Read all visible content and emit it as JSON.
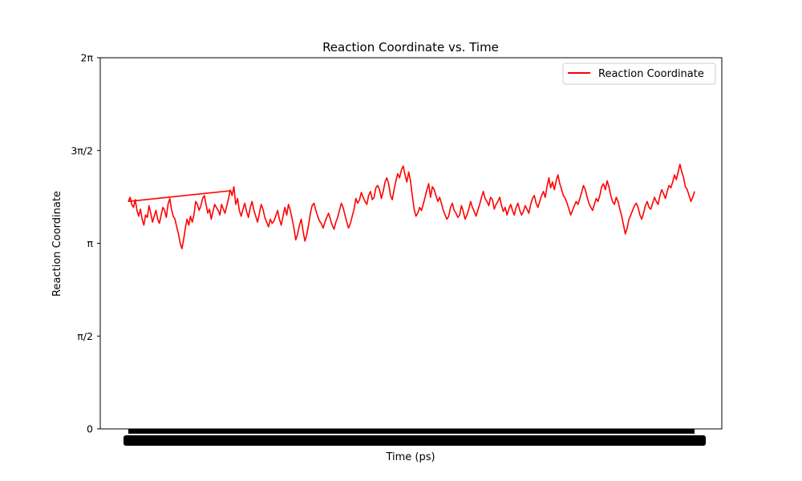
{
  "chart_data": {
    "type": "line",
    "title": "Reaction Coordinate vs. Time",
    "xlabel": "Time (ps)",
    "ylabel": "Reaction Coordinate",
    "ylim": [
      0,
      6.283185307179586
    ],
    "yticks": [
      {
        "value": 0,
        "label": "0"
      },
      {
        "value": 1.5707963267948966,
        "label": "π/2"
      },
      {
        "value": 3.141592653589793,
        "label": "π"
      },
      {
        "value": 4.71238898038469,
        "label": "3π/2"
      },
      {
        "value": 6.283185307179586,
        "label": "2π"
      }
    ],
    "x_ticks_note": "hundreds of overlapping numeric tick labels rendered as a solid black band",
    "grid": false,
    "legend_position": "upper right",
    "series": [
      {
        "name": "Reaction Coordinate",
        "color": "#ff0000",
        "segments": [
          {
            "x_start": 0,
            "x_end": 0.18,
            "values": [
              3.85,
              3.92,
              3.8,
              3.75,
              3.88,
              3.7,
              3.6,
              3.72,
              3.55,
              3.45,
              3.62,
              3.58,
              3.78,
              3.65,
              3.5,
              3.6,
              3.7,
              3.55,
              3.48,
              3.62,
              3.75,
              3.7,
              3.58,
              3.8,
              3.9,
              3.72,
              3.6,
              3.55,
              3.42,
              3.3,
              3.15,
              3.05,
              3.2,
              3.4,
              3.55,
              3.45,
              3.6,
              3.5,
              3.62,
              3.85,
              3.8,
              3.7,
              3.78,
              3.9,
              3.95,
              3.8,
              3.65,
              3.72,
              3.55,
              3.68,
              3.8,
              3.75,
              3.7,
              3.62,
              3.8,
              3.72,
              3.65,
              3.78,
              3.9,
              4.05
            ]
          },
          {
            "x_start": 0,
            "x_end": 0.18,
            "values": [
              3.85,
              4.03
            ]
          },
          {
            "x_start": 0.18,
            "x_end": 1.0,
            "values": [
              4.05,
              3.95,
              4.1,
              3.8,
              3.9,
              3.7,
              3.6,
              3.72,
              3.82,
              3.68,
              3.58,
              3.75,
              3.85,
              3.7,
              3.6,
              3.5,
              3.65,
              3.8,
              3.72,
              3.58,
              3.5,
              3.42,
              3.55,
              3.48,
              3.52,
              3.6,
              3.7,
              3.55,
              3.45,
              3.6,
              3.75,
              3.62,
              3.8,
              3.7,
              3.55,
              3.4,
              3.2,
              3.3,
              3.45,
              3.55,
              3.35,
              3.18,
              3.28,
              3.45,
              3.65,
              3.78,
              3.82,
              3.7,
              3.6,
              3.52,
              3.48,
              3.4,
              3.5,
              3.58,
              3.65,
              3.55,
              3.45,
              3.38,
              3.5,
              3.58,
              3.7,
              3.82,
              3.75,
              3.62,
              3.5,
              3.4,
              3.48,
              3.6,
              3.72,
              3.9,
              3.82,
              3.88,
              4.0,
              3.92,
              3.85,
              3.8,
              3.95,
              4.02,
              3.88,
              3.92,
              4.08,
              4.12,
              4.05,
              3.9,
              4.02,
              4.18,
              4.25,
              4.15,
              3.95,
              3.88,
              4.05,
              4.2,
              4.32,
              4.25,
              4.38,
              4.45,
              4.3,
              4.18,
              4.35,
              4.2,
              3.95,
              3.72,
              3.6,
              3.65,
              3.75,
              3.7,
              3.8,
              3.92,
              4.05,
              4.15,
              3.92,
              4.1,
              4.05,
              3.95,
              3.85,
              3.92,
              3.82,
              3.7,
              3.62,
              3.55,
              3.6,
              3.75,
              3.82,
              3.7,
              3.65,
              3.58,
              3.62,
              3.78,
              3.68,
              3.55,
              3.62,
              3.72,
              3.85,
              3.75,
              3.68,
              3.6,
              3.7,
              3.8,
              3.92,
              4.02,
              3.9,
              3.85,
              3.78,
              3.92,
              3.88,
              3.72,
              3.8,
              3.85,
              3.92,
              3.78,
              3.68,
              3.75,
              3.62,
              3.72,
              3.8,
              3.7,
              3.62,
              3.75,
              3.82,
              3.7,
              3.62,
              3.68,
              3.78,
              3.72,
              3.65,
              3.8,
              3.9,
              3.95,
              3.82,
              3.75,
              3.85,
              3.95,
              4.02,
              3.92,
              4.1,
              4.25,
              4.08,
              4.18,
              4.05,
              4.2,
              4.3,
              4.15,
              4.05,
              3.95,
              3.9,
              3.82,
              3.72,
              3.62,
              3.7,
              3.78,
              3.85,
              3.8,
              3.9,
              4.0,
              4.12,
              4.05,
              3.92,
              3.82,
              3.75,
              3.7,
              3.8,
              3.9,
              3.85,
              3.95,
              4.1,
              4.15,
              4.05,
              4.2,
              4.1,
              3.95,
              3.85,
              3.8,
              3.92,
              3.85,
              3.72,
              3.6,
              3.45,
              3.3,
              3.4,
              3.55,
              3.62,
              3.7,
              3.78,
              3.82,
              3.75,
              3.62,
              3.55,
              3.65,
              3.78,
              3.85,
              3.75,
              3.72,
              3.82,
              3.92,
              3.85,
              3.8,
              3.95,
              4.05,
              3.98,
              3.9,
              4.02,
              4.12,
              4.08,
              4.18,
              4.3,
              4.22,
              4.35,
              4.48,
              4.35,
              4.25,
              4.1,
              4.05,
              3.95,
              3.85,
              3.92,
              4.02
            ]
          }
        ]
      }
    ]
  }
}
